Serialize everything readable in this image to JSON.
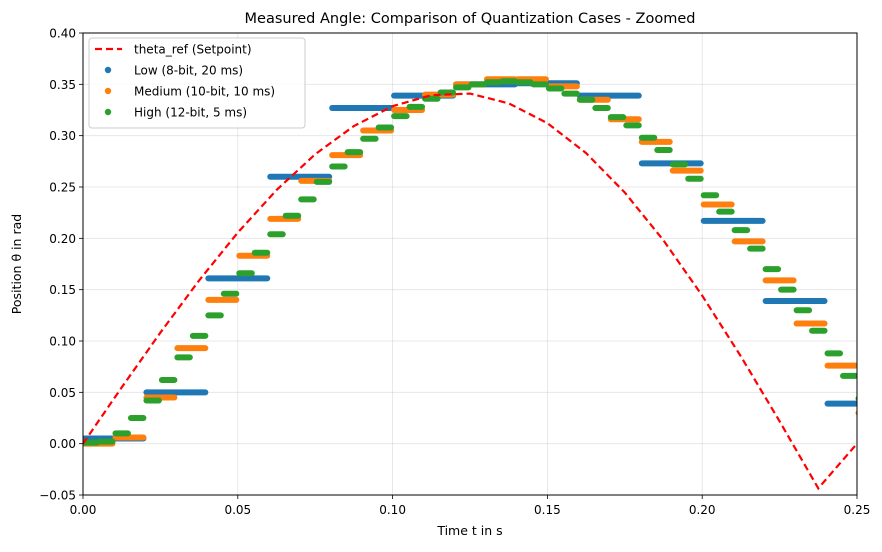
{
  "chart_data": {
    "type": "scatter",
    "title": "Measured Angle: Comparison of Quantization Cases - Zoomed",
    "xlabel": "Time t in s",
    "ylabel": "Position θ in rad",
    "xlim": [
      0,
      0.25
    ],
    "ylim": [
      -0.05,
      0.4
    ],
    "xticks": [
      0.0,
      0.05,
      0.1,
      0.15,
      0.2,
      0.25
    ],
    "xtick_labels": [
      "0.00",
      "0.05",
      "0.10",
      "0.15",
      "0.20",
      "0.25"
    ],
    "yticks": [
      -0.05,
      0.0,
      0.05,
      0.1,
      0.15,
      0.2,
      0.25,
      0.3,
      0.35,
      0.4
    ],
    "ytick_labels": [
      "−0.05",
      "0.00",
      "0.05",
      "0.10",
      "0.15",
      "0.20",
      "0.25",
      "0.30",
      "0.35",
      "0.40"
    ],
    "grid": true,
    "legend_position": "top-left",
    "legend": [
      {
        "label": "theta_ref (Setpoint)",
        "color": "#ff0000",
        "style": "dashed-line"
      },
      {
        "label": "Low (8-bit, 20 ms)",
        "color": "#1f77b4",
        "style": "dot"
      },
      {
        "label": "Medium (10-bit, 10 ms)",
        "color": "#ff7f0e",
        "style": "dot"
      },
      {
        "label": "High (12-bit, 5 ms)",
        "color": "#2ca02c",
        "style": "dot"
      }
    ],
    "reference_curve": {
      "name": "theta_ref (Setpoint)",
      "color": "#ff0000",
      "x": [
        0.0,
        0.0125,
        0.025,
        0.0375,
        0.05,
        0.0625,
        0.075,
        0.0875,
        0.1,
        0.1125,
        0.125,
        0.1375,
        0.15,
        0.1625,
        0.175,
        0.1875,
        0.2,
        0.2125,
        0.225,
        0.2375,
        0.25
      ],
      "y": [
        0.0,
        0.0548,
        0.1082,
        0.159,
        0.2056,
        0.247,
        0.2819,
        0.3094,
        0.3287,
        0.3394,
        0.341,
        0.3315,
        0.3122,
        0.283,
        0.2446,
        0.198,
        0.1442,
        0.085,
        0.0218,
        -0.0435,
        0.0
      ]
    },
    "series": [
      {
        "name": "Low (8-bit, 20 ms)",
        "color": "#1f77b4",
        "hold_period": 0.02,
        "segments": [
          [
            0.0,
            0.02,
            0.005
          ],
          [
            0.02,
            0.04,
            0.05
          ],
          [
            0.04,
            0.06,
            0.161
          ],
          [
            0.06,
            0.08,
            0.26
          ],
          [
            0.08,
            0.1,
            0.327
          ],
          [
            0.1,
            0.12,
            0.339
          ],
          [
            0.12,
            0.14,
            0.35
          ],
          [
            0.14,
            0.16,
            0.351
          ],
          [
            0.16,
            0.18,
            0.339
          ],
          [
            0.18,
            0.2,
            0.273
          ],
          [
            0.2,
            0.22,
            0.217
          ],
          [
            0.22,
            0.24,
            0.139
          ],
          [
            0.24,
            0.25,
            0.039
          ]
        ]
      },
      {
        "name": "Medium (10-bit, 10 ms)",
        "color": "#ff7f0e",
        "hold_period": 0.01,
        "segments": [
          [
            0.0,
            0.01,
            0.0
          ],
          [
            0.01,
            0.02,
            0.006
          ],
          [
            0.02,
            0.03,
            0.045
          ],
          [
            0.03,
            0.04,
            0.093
          ],
          [
            0.04,
            0.05,
            0.14
          ],
          [
            0.05,
            0.06,
            0.183
          ],
          [
            0.06,
            0.07,
            0.219
          ],
          [
            0.07,
            0.08,
            0.256
          ],
          [
            0.08,
            0.09,
            0.281
          ],
          [
            0.09,
            0.1,
            0.305
          ],
          [
            0.1,
            0.11,
            0.325
          ],
          [
            0.11,
            0.12,
            0.34
          ],
          [
            0.12,
            0.13,
            0.35
          ],
          [
            0.13,
            0.14,
            0.355
          ],
          [
            0.14,
            0.15,
            0.355
          ],
          [
            0.15,
            0.16,
            0.348
          ],
          [
            0.16,
            0.17,
            0.335
          ],
          [
            0.17,
            0.18,
            0.316
          ],
          [
            0.18,
            0.19,
            0.294
          ],
          [
            0.19,
            0.2,
            0.266
          ],
          [
            0.2,
            0.21,
            0.233
          ],
          [
            0.21,
            0.22,
            0.197
          ],
          [
            0.22,
            0.23,
            0.159
          ],
          [
            0.23,
            0.24,
            0.117
          ],
          [
            0.24,
            0.25,
            0.076
          ],
          [
            0.25,
            0.26,
            0.03
          ]
        ]
      },
      {
        "name": "High (12-bit, 5 ms)",
        "color": "#2ca02c",
        "hold_period": 0.005,
        "segments": [
          [
            0.0,
            0.005,
            0.001
          ],
          [
            0.005,
            0.01,
            0.002
          ],
          [
            0.01,
            0.015,
            0.01
          ],
          [
            0.015,
            0.02,
            0.025
          ],
          [
            0.02,
            0.025,
            0.042
          ],
          [
            0.025,
            0.03,
            0.062
          ],
          [
            0.03,
            0.035,
            0.084
          ],
          [
            0.035,
            0.04,
            0.105
          ],
          [
            0.04,
            0.045,
            0.125
          ],
          [
            0.045,
            0.05,
            0.146
          ],
          [
            0.05,
            0.055,
            0.166
          ],
          [
            0.055,
            0.06,
            0.186
          ],
          [
            0.06,
            0.065,
            0.204
          ],
          [
            0.065,
            0.07,
            0.222
          ],
          [
            0.07,
            0.075,
            0.238
          ],
          [
            0.075,
            0.08,
            0.255
          ],
          [
            0.08,
            0.085,
            0.27
          ],
          [
            0.085,
            0.09,
            0.284
          ],
          [
            0.09,
            0.095,
            0.297
          ],
          [
            0.095,
            0.1,
            0.308
          ],
          [
            0.1,
            0.105,
            0.319
          ],
          [
            0.105,
            0.11,
            0.328
          ],
          [
            0.11,
            0.115,
            0.336
          ],
          [
            0.115,
            0.12,
            0.342
          ],
          [
            0.12,
            0.125,
            0.347
          ],
          [
            0.125,
            0.13,
            0.35
          ],
          [
            0.13,
            0.135,
            0.352
          ],
          [
            0.135,
            0.14,
            0.353
          ],
          [
            0.14,
            0.145,
            0.352
          ],
          [
            0.145,
            0.15,
            0.35
          ],
          [
            0.15,
            0.155,
            0.346
          ],
          [
            0.155,
            0.16,
            0.341
          ],
          [
            0.16,
            0.165,
            0.335
          ],
          [
            0.165,
            0.17,
            0.327
          ],
          [
            0.17,
            0.175,
            0.318
          ],
          [
            0.175,
            0.18,
            0.31
          ],
          [
            0.18,
            0.185,
            0.298
          ],
          [
            0.185,
            0.19,
            0.286
          ],
          [
            0.19,
            0.195,
            0.272
          ],
          [
            0.195,
            0.2,
            0.258
          ],
          [
            0.2,
            0.205,
            0.242
          ],
          [
            0.205,
            0.21,
            0.226
          ],
          [
            0.21,
            0.215,
            0.208
          ],
          [
            0.215,
            0.22,
            0.19
          ],
          [
            0.22,
            0.225,
            0.17
          ],
          [
            0.225,
            0.23,
            0.15
          ],
          [
            0.23,
            0.235,
            0.13
          ],
          [
            0.235,
            0.24,
            0.11
          ],
          [
            0.24,
            0.245,
            0.088
          ],
          [
            0.245,
            0.25,
            0.066
          ],
          [
            0.25,
            0.255,
            0.044
          ]
        ]
      }
    ]
  }
}
